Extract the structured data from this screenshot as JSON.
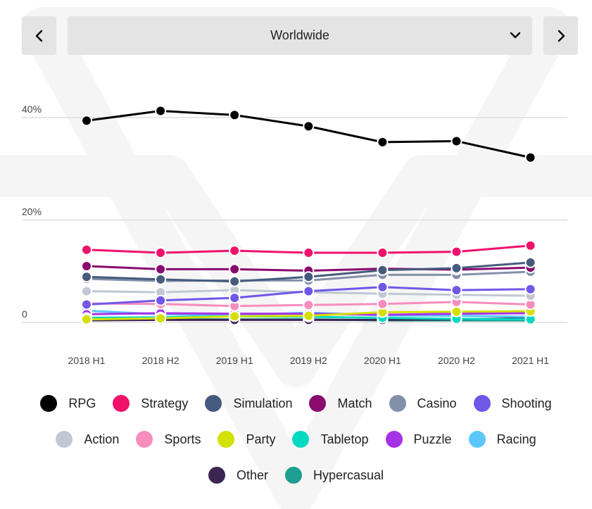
{
  "header": {
    "prev_label": "previous",
    "next_label": "next",
    "region": "Worldwide"
  },
  "colors": {
    "button_bg": "#e4e4e4",
    "grid": "#dddddd",
    "axis_text": "#444444"
  },
  "chart_data": {
    "type": "line",
    "title": "",
    "xlabel": "",
    "ylabel": "",
    "x": [
      "2018 H1",
      "2018 H2",
      "2019 H1",
      "2019 H2",
      "2020 H1",
      "2020 H2",
      "2021 H1"
    ],
    "ylim": [
      0,
      40
    ],
    "yticks": [
      {
        "value": 0,
        "label": "0"
      },
      {
        "value": 20,
        "label": "20%"
      },
      {
        "value": 40,
        "label": "40%"
      }
    ],
    "grid": true,
    "legend_position": "bottom",
    "series": [
      {
        "name": "RPG",
        "color": "#000000",
        "values": [
          39.4,
          41.3,
          40.5,
          38.3,
          35.2,
          35.4,
          32.2
        ]
      },
      {
        "name": "Strategy",
        "color": "#f0116b",
        "values": [
          14.2,
          13.6,
          14.0,
          13.6,
          13.6,
          13.8,
          15.0
        ]
      },
      {
        "name": "Simulation",
        "color": "#465b7d",
        "values": [
          8.9,
          8.4,
          8.0,
          8.9,
          10.2,
          10.6,
          11.7
        ]
      },
      {
        "name": "Match",
        "color": "#8a0a6e",
        "values": [
          11.0,
          10.4,
          10.4,
          10.1,
          10.5,
          10.3,
          10.7
        ]
      },
      {
        "name": "Casino",
        "color": "#8390a9",
        "values": [
          8.5,
          8.1,
          8.2,
          8.2,
          9.3,
          9.3,
          9.9
        ]
      },
      {
        "name": "Shooting",
        "color": "#7057e8",
        "values": [
          3.5,
          4.3,
          4.8,
          6.1,
          6.9,
          6.3,
          6.5
        ]
      },
      {
        "name": "Action",
        "color": "#c2c7d3",
        "values": [
          6.1,
          5.9,
          6.3,
          5.9,
          5.6,
          5.4,
          5.2
        ]
      },
      {
        "name": "Sports",
        "color": "#f78dbd",
        "values": [
          3.7,
          3.6,
          3.2,
          3.4,
          3.6,
          4.0,
          3.5
        ]
      },
      {
        "name": "Party",
        "color": "#d4e000",
        "values": [
          0.6,
          0.8,
          1.2,
          1.3,
          2.0,
          2.1,
          2.2
        ]
      },
      {
        "name": "Tabletop",
        "color": "#00d9c2",
        "values": [
          0.9,
          1.0,
          1.2,
          1.1,
          0.9,
          0.7,
          0.6
        ]
      },
      {
        "name": "Puzzle",
        "color": "#a632e8",
        "values": [
          1.6,
          1.8,
          1.7,
          1.7,
          1.5,
          1.7,
          1.8
        ]
      },
      {
        "name": "Racing",
        "color": "#5ac8fa",
        "values": [
          2.3,
          1.6,
          1.4,
          1.9,
          1.4,
          1.3,
          1.1
        ]
      },
      {
        "name": "Other",
        "color": "#3b2553",
        "values": [
          0.4,
          0.5,
          0.5,
          0.5,
          0.5,
          0.6,
          0.8
        ]
      },
      {
        "name": "Hypercasual",
        "color": "#1f9e91",
        "values": [
          0.4,
          0.6,
          0.6,
          0.6,
          0.4,
          0.4,
          0.4
        ]
      }
    ]
  },
  "legend_rows": [
    [
      0,
      1,
      2,
      3,
      4,
      5
    ],
    [
      6,
      7,
      8,
      9,
      10,
      11
    ],
    [
      12,
      13
    ]
  ]
}
